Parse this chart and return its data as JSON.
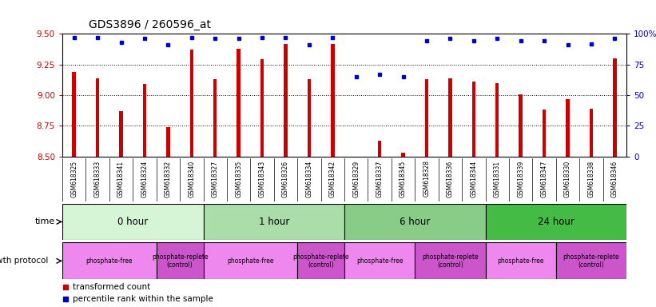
{
  "title": "GDS3896 / 260596_at",
  "samples": [
    "GSM618325",
    "GSM618333",
    "GSM618341",
    "GSM618324",
    "GSM618332",
    "GSM618340",
    "GSM618327",
    "GSM618335",
    "GSM618343",
    "GSM618326",
    "GSM618334",
    "GSM618342",
    "GSM618329",
    "GSM618337",
    "GSM618345",
    "GSM618328",
    "GSM618336",
    "GSM618344",
    "GSM618331",
    "GSM618339",
    "GSM618347",
    "GSM618330",
    "GSM618338",
    "GSM618346"
  ],
  "transformed_count": [
    9.19,
    9.14,
    8.87,
    9.09,
    8.74,
    9.37,
    9.13,
    9.38,
    9.29,
    9.42,
    9.13,
    9.42,
    8.5,
    8.63,
    8.53,
    9.13,
    9.14,
    9.11,
    9.1,
    9.01,
    8.88,
    8.97,
    8.89,
    9.3
  ],
  "percentile_rank": [
    97,
    97,
    93,
    96,
    91,
    97,
    96,
    96,
    97,
    97,
    91,
    97,
    65,
    67,
    65,
    94,
    96,
    94,
    96,
    94,
    94,
    91,
    92,
    96
  ],
  "ylim_left": [
    8.5,
    9.5
  ],
  "ylim_right": [
    0,
    100
  ],
  "yticks_left": [
    8.5,
    8.75,
    9.0,
    9.25,
    9.5
  ],
  "yticks_right": [
    0,
    25,
    50,
    75,
    100
  ],
  "bar_color": "#cc0000",
  "dot_color": "#0000cc",
  "time_groups": [
    {
      "label": "0 hour",
      "start": 0,
      "end": 6,
      "color": "#d6f5d6"
    },
    {
      "label": "1 hour",
      "start": 6,
      "end": 12,
      "color": "#aaddaa"
    },
    {
      "label": "6 hour",
      "start": 12,
      "end": 18,
      "color": "#88cc88"
    },
    {
      "label": "24 hour",
      "start": 18,
      "end": 24,
      "color": "#44bb44"
    }
  ],
  "protocol_groups": [
    {
      "label": "phosphate-free",
      "start": 0,
      "end": 4,
      "color": "#ee88ee"
    },
    {
      "label": "phosphate-replete\n(control)",
      "start": 4,
      "end": 6,
      "color": "#cc55cc"
    },
    {
      "label": "phosphate-free",
      "start": 6,
      "end": 10,
      "color": "#ee88ee"
    },
    {
      "label": "phosphate-replete\n(control)",
      "start": 10,
      "end": 12,
      "color": "#cc55cc"
    },
    {
      "label": "phosphate-free",
      "start": 12,
      "end": 15,
      "color": "#ee88ee"
    },
    {
      "label": "phosphate-replete\n(control)",
      "start": 15,
      "end": 18,
      "color": "#cc55cc"
    },
    {
      "label": "phosphate-free",
      "start": 18,
      "end": 21,
      "color": "#ee88ee"
    },
    {
      "label": "phosphate-replete\n(control)",
      "start": 21,
      "end": 24,
      "color": "#cc55cc"
    }
  ],
  "bg_color": "#ffffff",
  "tick_color_left": "#cc0000",
  "tick_color_right": "#0000cc",
  "bar_width": 0.15
}
